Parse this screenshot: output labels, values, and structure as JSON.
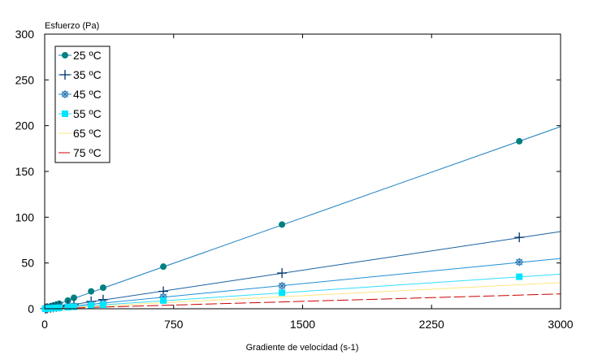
{
  "chart_data": {
    "type": "scatter",
    "ylabel": "Esfuerzo (Pa)",
    "xlabel": "Gradiente de velocidad (s-1)",
    "xlim": [
      0,
      3000
    ],
    "ylim": [
      0,
      300
    ],
    "xticks": [
      0,
      750,
      1500,
      2250,
      3000
    ],
    "yticks": [
      0,
      50,
      100,
      150,
      200,
      250,
      300
    ],
    "grid": false,
    "legend_position": "top-left",
    "series": [
      {
        "name": "25 ºC",
        "color": "#008080",
        "line_color": "#1a7fbf",
        "marker": "filled-circle",
        "slope": 0.0663,
        "x": [
          3,
          10,
          17,
          34,
          50,
          68,
          85,
          135,
          170,
          270,
          340,
          690,
          1380,
          2760
        ],
        "y": [
          0.5,
          1,
          1.5,
          2.5,
          3.5,
          4.5,
          5.5,
          9,
          12,
          19,
          23,
          46,
          92,
          183
        ]
      },
      {
        "name": "35 ºC",
        "color": "#003366",
        "line_color": "#1a5f9f",
        "marker": "plus",
        "slope": 0.0281,
        "x": [
          3,
          10,
          17,
          34,
          50,
          68,
          85,
          135,
          170,
          270,
          340,
          690,
          1380,
          2760
        ],
        "y": [
          0.2,
          0.4,
          0.6,
          1,
          1.5,
          2,
          2.5,
          4,
          5,
          8,
          10,
          19,
          39,
          78
        ]
      },
      {
        "name": "45 ºC",
        "color": "#1a6fb0",
        "line_color": "#1f8fd6",
        "marker": "open-star",
        "slope": 0.0183,
        "x": [
          3,
          10,
          17,
          34,
          50,
          68,
          85,
          135,
          170,
          270,
          340,
          690,
          1380,
          2760
        ],
        "y": [
          0.1,
          0.3,
          0.4,
          0.7,
          1,
          1.3,
          1.6,
          2.5,
          3.2,
          5,
          6.3,
          13,
          25,
          51
        ]
      },
      {
        "name": "55 ºC",
        "color": "#00e5ff",
        "line_color": "#33ddff",
        "marker": "filled-square",
        "slope": 0.0126,
        "x": [
          3,
          10,
          17,
          34,
          50,
          68,
          85,
          135,
          170,
          270,
          340,
          690,
          1380,
          2760
        ],
        "y": [
          0.1,
          0.2,
          0.3,
          0.5,
          0.7,
          0.9,
          1.1,
          1.7,
          2.2,
          3.5,
          4.4,
          9,
          17.5,
          35
        ]
      },
      {
        "name": "65 ºC",
        "color": "#ffec99",
        "line_color": "#ffe680",
        "marker": "line",
        "slope": 0.0095,
        "x": [],
        "y": []
      },
      {
        "name": "75 ºC",
        "color": "#cc0000",
        "line_color": "#cc0000",
        "marker": "dash",
        "slope": 0.0054,
        "x": [],
        "y": []
      }
    ]
  }
}
